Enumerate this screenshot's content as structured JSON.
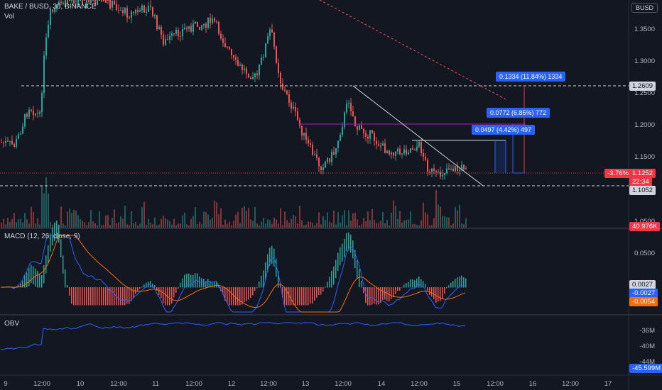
{
  "header": {
    "symbol": "BAKE / BUSD, 30, BINANCE",
    "vol_label": "Vol",
    "currency_badge": "BUSD"
  },
  "price_axis": {
    "labels": [
      "1.3500",
      "1.3000",
      "1.2500",
      "1.2000",
      "1.1500",
      "1.0500"
    ],
    "tags": {
      "resistance": "1.2609",
      "current_change": "-3.76%",
      "current_price": "1.1252",
      "countdown": "22:34",
      "support": "1.1052",
      "volume": "40.976K"
    }
  },
  "measures": [
    {
      "text": "0.1334 (11.84%) 1334"
    },
    {
      "text": "0.0772 (6.85%) 772"
    },
    {
      "text": "0.0497 (4.42%) 497"
    }
  ],
  "macd": {
    "title": "MACD (12, 26, close, 9)",
    "axis_label": "0.0500",
    "tags": {
      "hist": "0.0027",
      "macd": "-0.0027",
      "signal": "-0.0054"
    }
  },
  "obv": {
    "title": "OBV",
    "axis_labels": [
      "-36M",
      "-40M",
      "-44M"
    ],
    "tag": "-45.599M"
  },
  "time_axis": [
    "9",
    "12:00",
    "10",
    "12:00",
    "11",
    "12:00",
    "12",
    "12:00",
    "13",
    "12:00",
    "14",
    "12:00",
    "15",
    "12:00",
    "16",
    "12:00",
    "17"
  ],
  "colors": {
    "up": "#26a69a",
    "down": "#ef5350",
    "macd": "#2962ff",
    "signal": "#ff6d00",
    "obv": "#2962ff",
    "measure": "#2962ff",
    "current": "#f23645"
  }
}
